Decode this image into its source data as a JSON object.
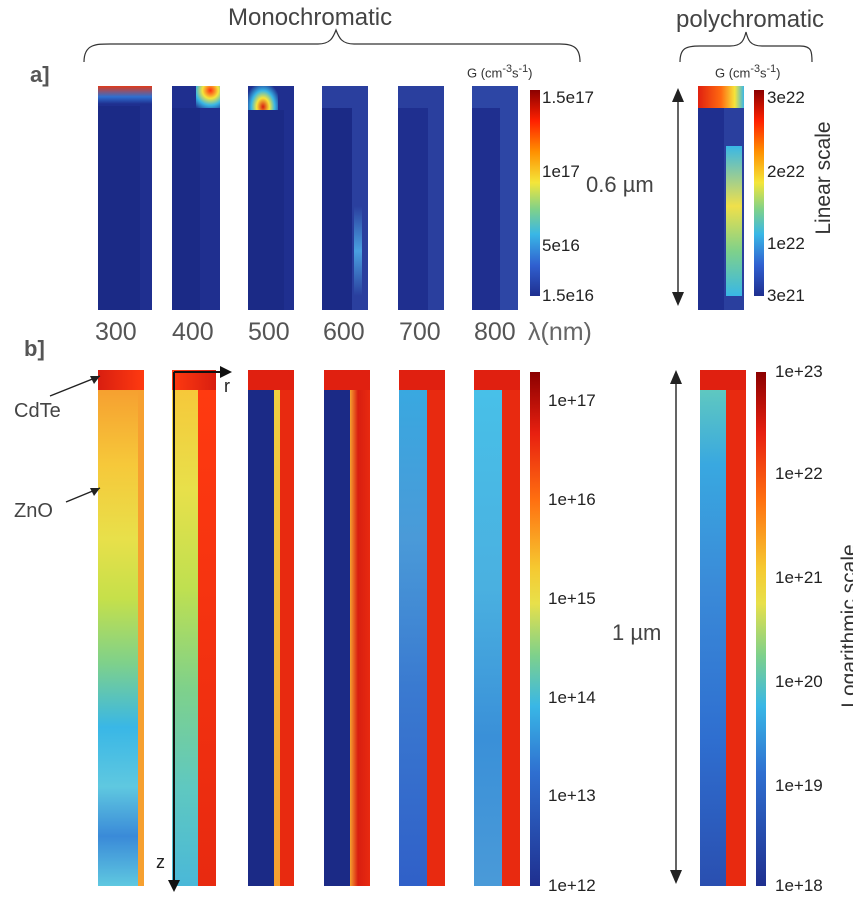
{
  "group_titles": {
    "mono": "Monochromatic",
    "poly": "polychromatic"
  },
  "panel_labels": {
    "a": "a]",
    "b": "b]"
  },
  "colorbar_unit": {
    "base": "G (cm",
    "exp1": "-3",
    "mid": "s",
    "exp2": "-1",
    "end": ")"
  },
  "wavelengths": [
    "300",
    "400",
    "500",
    "600",
    "700",
    "800"
  ],
  "wavelength_axis": {
    "symbol": "λ",
    "unit": "(nm)"
  },
  "dimensions": {
    "top": "0.6 µm",
    "bottom": "1 µm"
  },
  "scale_labels": {
    "linear": "Linear scale",
    "log": "Logarithmic scale"
  },
  "materials": {
    "shell": "CdTe",
    "core": "ZnO"
  },
  "axes": {
    "r": "r",
    "z": "z"
  },
  "colorbars": {
    "a_mono": [
      "1.5e17",
      "1e17",
      "5e16",
      "1.5e16"
    ],
    "a_poly": [
      "3e22",
      "2e22",
      "1e22",
      "3e21"
    ],
    "b_mono": [
      "1e+17",
      "1e+16",
      "1e+15",
      "1e+14",
      "1e+13",
      "1e+12"
    ],
    "b_poly": [
      "1e+23",
      "1e+22",
      "1e+21",
      "1e+20",
      "1e+19",
      "1e+18"
    ]
  },
  "colors": {
    "jet_low": "#1f2f8f",
    "jet_mid": "#f4e63a",
    "jet_high": "#cc1212"
  }
}
